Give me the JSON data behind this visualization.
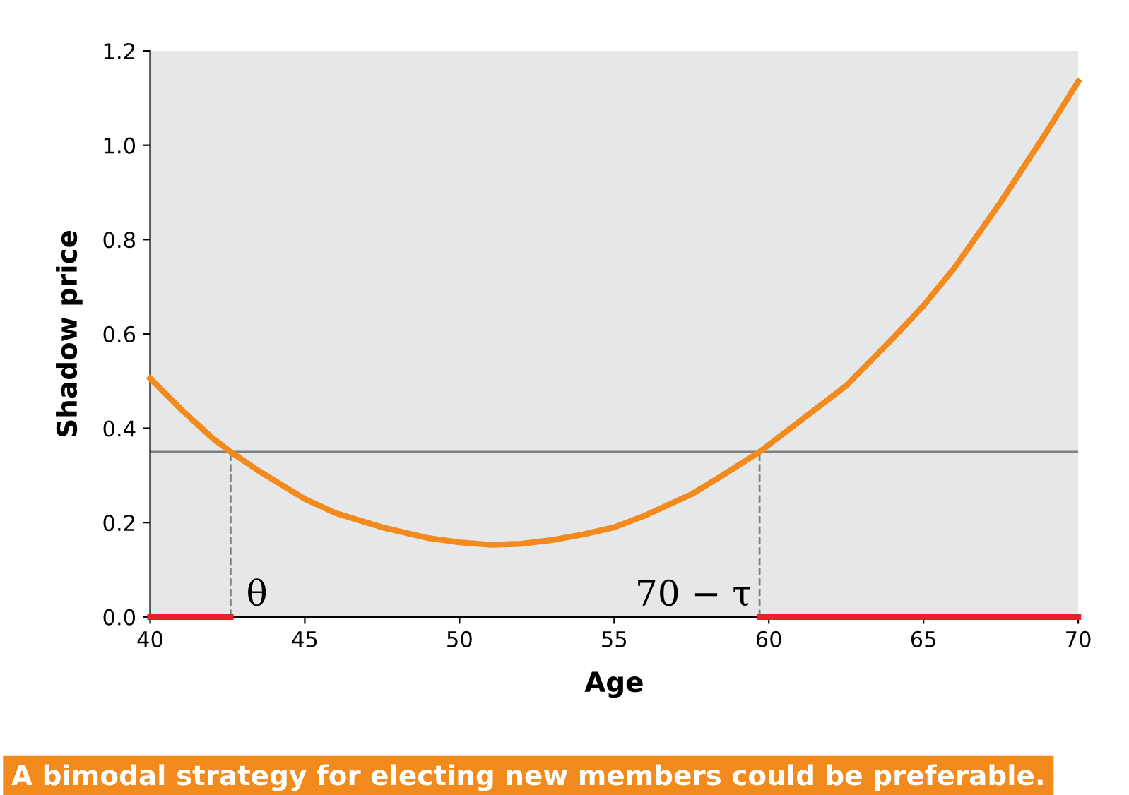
{
  "chart_data": {
    "type": "line",
    "xlabel": "Age",
    "ylabel": "Shadow price",
    "xlim": [
      40,
      70
    ],
    "ylim": [
      0,
      1.2
    ],
    "xticks": [
      40,
      45,
      50,
      55,
      60,
      65,
      70
    ],
    "yticks": [
      {
        "value": 0,
        "label": "0.0"
      },
      {
        "value": 0.2,
        "label": "0.2"
      },
      {
        "value": 0.4,
        "label": "0.4"
      },
      {
        "value": 0.6,
        "label": "0.6"
      },
      {
        "value": 0.8,
        "label": "0.8"
      },
      {
        "value": 1.0,
        "label": "1.0"
      },
      {
        "value": 1.2,
        "label": "1.2"
      }
    ],
    "grid": false,
    "series": [
      {
        "color": "#f28a1e",
        "x": [
          40,
          41,
          42,
          42.6,
          43.5,
          45,
          46,
          47.5,
          49,
          50,
          51,
          52,
          53,
          54,
          55,
          56,
          57.5,
          58.5,
          59.7,
          61,
          62.5,
          64,
          65,
          66,
          67.5,
          69,
          70
        ],
        "values": [
          0.506,
          0.44,
          0.38,
          0.35,
          0.31,
          0.25,
          0.22,
          0.19,
          0.167,
          0.158,
          0.153,
          0.155,
          0.163,
          0.175,
          0.19,
          0.215,
          0.26,
          0.3,
          0.35,
          0.415,
          0.49,
          0.59,
          0.66,
          0.74,
          0.88,
          1.03,
          1.135
        ]
      },
      {
        "color": "#e8202a",
        "x": [
          40,
          42.6
        ],
        "values": [
          0,
          0
        ]
      },
      {
        "color": "#e8202a",
        "x": [
          59.7,
          70
        ],
        "values": [
          0,
          0
        ]
      },
      {
        "color": "#808080",
        "line_style": "dashed",
        "x": [
          42.6,
          42.6
        ],
        "values": [
          0,
          0.35
        ]
      },
      {
        "color": "#808080",
        "line_style": "dashed",
        "x": [
          59.7,
          59.7
        ],
        "values": [
          0,
          0.35
        ]
      }
    ],
    "ref_lines": [
      {
        "axis": "y",
        "value": 0.35,
        "color": "#808080"
      }
    ],
    "annotations": [
      "θ",
      "70 − τ",
      "A bimodal strategy for electing new members could be preferable."
    ]
  }
}
